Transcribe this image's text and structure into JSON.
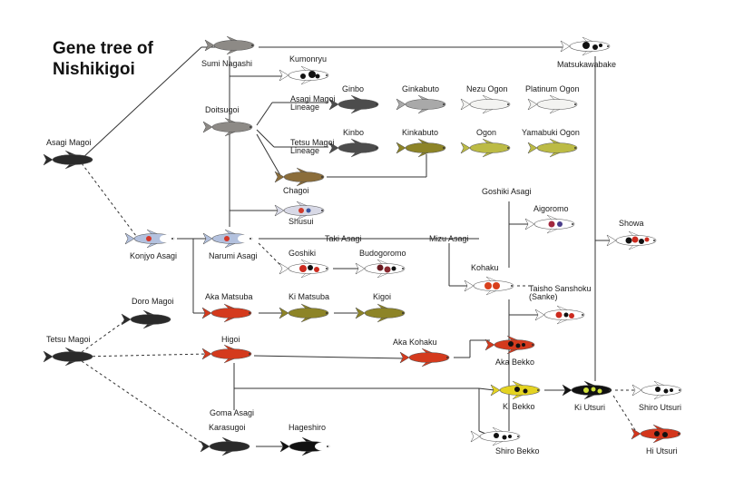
{
  "title_lines": [
    "Gene tree of",
    "Nishikigoi"
  ],
  "colors": {
    "line": "#333333",
    "label": "#1a1a1a",
    "background": "#ffffff"
  },
  "varieties": [
    {
      "id": "sumi_nagashi",
      "name": "Sumi Nagashi",
      "pattern": "gray"
    },
    {
      "id": "matsukawabake",
      "name": "Matsukawabake",
      "pattern": "matsukawa"
    },
    {
      "id": "kumonryu",
      "name": "Kumonryu",
      "pattern": "kumonryu"
    },
    {
      "id": "doitsugoi",
      "name": "Doitsugoi",
      "pattern": "gray"
    },
    {
      "id": "asagi_magoi",
      "name": "Asagi Magoi",
      "pattern": "black"
    },
    {
      "id": "ginbo",
      "name": "Ginbo",
      "pattern": "darkgray"
    },
    {
      "id": "ginkabuto",
      "name": "Ginkabuto",
      "pattern": "silver"
    },
    {
      "id": "nezu_ogon",
      "name": "Nezu Ogon",
      "pattern": "white"
    },
    {
      "id": "platinum_ogon",
      "name": "Platinum Ogon",
      "pattern": "white"
    },
    {
      "id": "kinbo",
      "name": "Kinbo",
      "pattern": "darkgray"
    },
    {
      "id": "kinkabuto",
      "name": "Kinkabuto",
      "pattern": "olive"
    },
    {
      "id": "ogon",
      "name": "Ogon",
      "pattern": "yellowgreen"
    },
    {
      "id": "yamabuki_ogon",
      "name": "Yamabuki Ogon",
      "pattern": "yellowgreen"
    },
    {
      "id": "chagoi",
      "name": "Chagoi",
      "pattern": "brown"
    },
    {
      "id": "shusui",
      "name": "Shusui",
      "pattern": "shusui"
    },
    {
      "id": "konjyo_asagi",
      "name": "Konjyo Asagi",
      "pattern": "asagi"
    },
    {
      "id": "narumi_asagi",
      "name": "Narumi Asagi",
      "pattern": "asagi"
    },
    {
      "id": "goshiki",
      "name": "Goshiki",
      "pattern": "goshiki"
    },
    {
      "id": "budogoromo",
      "name": "Budogoromo",
      "pattern": "budo"
    },
    {
      "id": "goshiki_asagi",
      "name": "Goshiki Asagi",
      "pattern": "none"
    },
    {
      "id": "aigoromo",
      "name": "Aigoromo",
      "pattern": "aigoromo"
    },
    {
      "id": "showa",
      "name": "Showa",
      "pattern": "showa"
    },
    {
      "id": "kohaku",
      "name": "Kohaku",
      "pattern": "kohaku"
    },
    {
      "id": "taisho_sanshoku",
      "name": "Taisho Sanshoku (Sanke)",
      "pattern": "sanke"
    },
    {
      "id": "doro_magoi",
      "name": "Doro Magoi",
      "pattern": "black"
    },
    {
      "id": "aka_matsuba",
      "name": "Aka Matsuba",
      "pattern": "red"
    },
    {
      "id": "ki_matsuba",
      "name": "Ki Matsuba",
      "pattern": "olive"
    },
    {
      "id": "kigoi",
      "name": "Kigoi",
      "pattern": "olive"
    },
    {
      "id": "tetsu_magoi",
      "name": "Tetsu Magoi",
      "pattern": "black"
    },
    {
      "id": "higoi",
      "name": "Higoi",
      "pattern": "red"
    },
    {
      "id": "aka_kohaku",
      "name": "Aka Kohaku",
      "pattern": "red"
    },
    {
      "id": "aka_bekko",
      "name": "Aka Bekko",
      "pattern": "akabekko"
    },
    {
      "id": "ki_bekko",
      "name": "Ki Bekko",
      "pattern": "kibekko"
    },
    {
      "id": "ki_utsuri",
      "name": "Ki Utsuri",
      "pattern": "kiutsuri"
    },
    {
      "id": "shiro_utsuri",
      "name": "Shiro Utsuri",
      "pattern": "shirobekko"
    },
    {
      "id": "hi_utsuri",
      "name": "Hi Utsuri",
      "pattern": "hiutsuri"
    },
    {
      "id": "goma_asagi",
      "name": "Goma Asagi",
      "pattern": "none"
    },
    {
      "id": "karasugoi",
      "name": "Karasugoi",
      "pattern": "black"
    },
    {
      "id": "hageshiro",
      "name": "Hageshiro",
      "pattern": "hageshiro"
    },
    {
      "id": "shiro_bekko",
      "name": "Shiro Bekko",
      "pattern": "shirobekko"
    }
  ],
  "text_labels": [
    {
      "id": "asagi_magoi_lineage",
      "lines": [
        "Asagi Magoi",
        "Lineage"
      ]
    },
    {
      "id": "tetsu_magoi_lineage",
      "lines": [
        "Tetsu Magoi",
        "Lineage"
      ]
    },
    {
      "id": "taki_asagi",
      "lines": [
        "Taki Asagi"
      ]
    },
    {
      "id": "mizu_asagi",
      "lines": [
        "Mizu Asagi"
      ]
    }
  ]
}
